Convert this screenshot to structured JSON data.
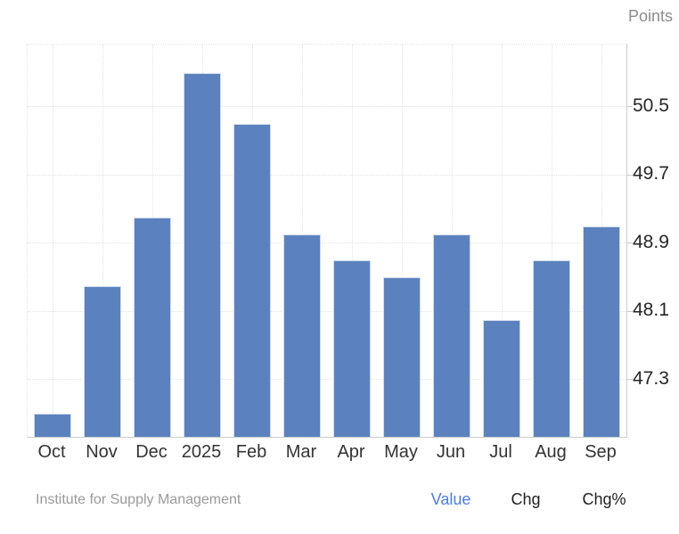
{
  "colors": {
    "bar": "#5b82be",
    "grid": "#e4e4e4",
    "axis_line": "#cccccc",
    "tick_label": "#262626",
    "month_label": "#333333",
    "points_label": "#8c8c8c",
    "source": "#9a9a9a",
    "footer_dark": "#1f1f1f",
    "value_link": "#4a7ee6"
  },
  "footer": {
    "source": "Institute for Supply Management",
    "tabs": [
      {
        "label": "Value",
        "active": true
      },
      {
        "label": "Chg",
        "active": false
      },
      {
        "label": "Chg%",
        "active": false
      }
    ]
  },
  "chart_data": {
    "type": "bar",
    "title": "",
    "categories": [
      "Oct",
      "Nov",
      "Dec",
      "2025",
      "Feb",
      "Mar",
      "Apr",
      "May",
      "Jun",
      "Jul",
      "Aug",
      "Sep"
    ],
    "values": [
      46.9,
      48.4,
      49.2,
      50.9,
      50.3,
      49.0,
      48.7,
      48.5,
      49.0,
      48.0,
      48.7,
      49.1
    ],
    "series_name": "Value",
    "xlabel": "",
    "ylabel": "Points",
    "yticks": [
      47.3,
      48.1,
      48.9,
      49.7,
      50.5
    ],
    "ylim": [
      46.63,
      51.23
    ],
    "grid": true,
    "legend": false,
    "tick_label_side": "right"
  }
}
